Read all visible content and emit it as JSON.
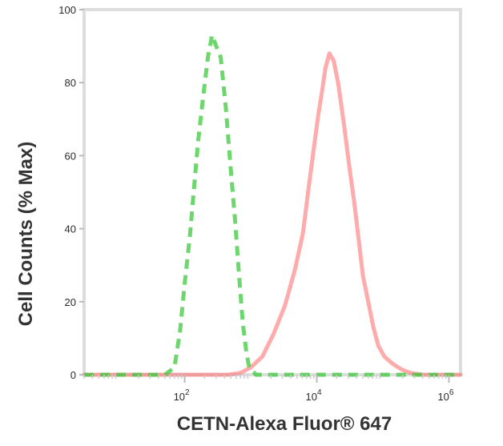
{
  "chart_data": {
    "type": "line",
    "title": "",
    "xlabel": "CETN-Alexa Fluor® 647",
    "ylabel": "Cell Counts (% Max)",
    "x_scale": "log",
    "xlim": [
      3,
      1500000
    ],
    "ylim": [
      0,
      100
    ],
    "x_ticks": [
      {
        "value": 100,
        "base": "10",
        "exp": "2"
      },
      {
        "value": 10000,
        "base": "10",
        "exp": "4"
      },
      {
        "value": 1000000,
        "base": "10",
        "exp": "6"
      }
    ],
    "y_ticks": [
      {
        "value": 0,
        "label": "0"
      },
      {
        "value": 20,
        "label": "20"
      },
      {
        "value": 40,
        "label": "40"
      },
      {
        "value": 60,
        "label": "60"
      },
      {
        "value": 80,
        "label": "80"
      },
      {
        "value": 100,
        "label": "100"
      }
    ],
    "grid": false,
    "series": [
      {
        "color": "#3cc83c",
        "dash": true,
        "points": [
          [
            3,
            0
          ],
          [
            20,
            0
          ],
          [
            50,
            0
          ],
          [
            70,
            2
          ],
          [
            85,
            12
          ],
          [
            100,
            25
          ],
          [
            120,
            38
          ],
          [
            140,
            52
          ],
          [
            160,
            64
          ],
          [
            190,
            76
          ],
          [
            225,
            87
          ],
          [
            260,
            93
          ],
          [
            300,
            90
          ],
          [
            350,
            87
          ],
          [
            420,
            73
          ],
          [
            500,
            56
          ],
          [
            580,
            42
          ],
          [
            660,
            28
          ],
          [
            760,
            14
          ],
          [
            860,
            6
          ],
          [
            950,
            2
          ],
          [
            1200,
            0
          ],
          [
            30000,
            0
          ],
          [
            100000,
            0
          ],
          [
            1500000,
            0
          ]
        ]
      },
      {
        "color": "#ff6666",
        "dash": false,
        "points": [
          [
            3,
            0
          ],
          [
            100,
            0
          ],
          [
            450,
            0
          ],
          [
            700,
            0.5
          ],
          [
            1000,
            2
          ],
          [
            1500,
            5
          ],
          [
            2200,
            11
          ],
          [
            3300,
            19
          ],
          [
            4700,
            29
          ],
          [
            6200,
            39
          ],
          [
            7500,
            51
          ],
          [
            9000,
            62
          ],
          [
            10500,
            71
          ],
          [
            12300,
            79
          ],
          [
            13500,
            84
          ],
          [
            15500,
            88
          ],
          [
            18000,
            86
          ],
          [
            21000,
            80
          ],
          [
            26000,
            68
          ],
          [
            31000,
            57
          ],
          [
            37000,
            47
          ],
          [
            43000,
            37
          ],
          [
            50000,
            27
          ],
          [
            60000,
            20
          ],
          [
            72000,
            13
          ],
          [
            85000,
            8
          ],
          [
            105000,
            5
          ],
          [
            140000,
            3
          ],
          [
            190000,
            1.5
          ],
          [
            260000,
            0.5
          ],
          [
            400000,
            0
          ],
          [
            1500000,
            0
          ]
        ]
      }
    ]
  }
}
